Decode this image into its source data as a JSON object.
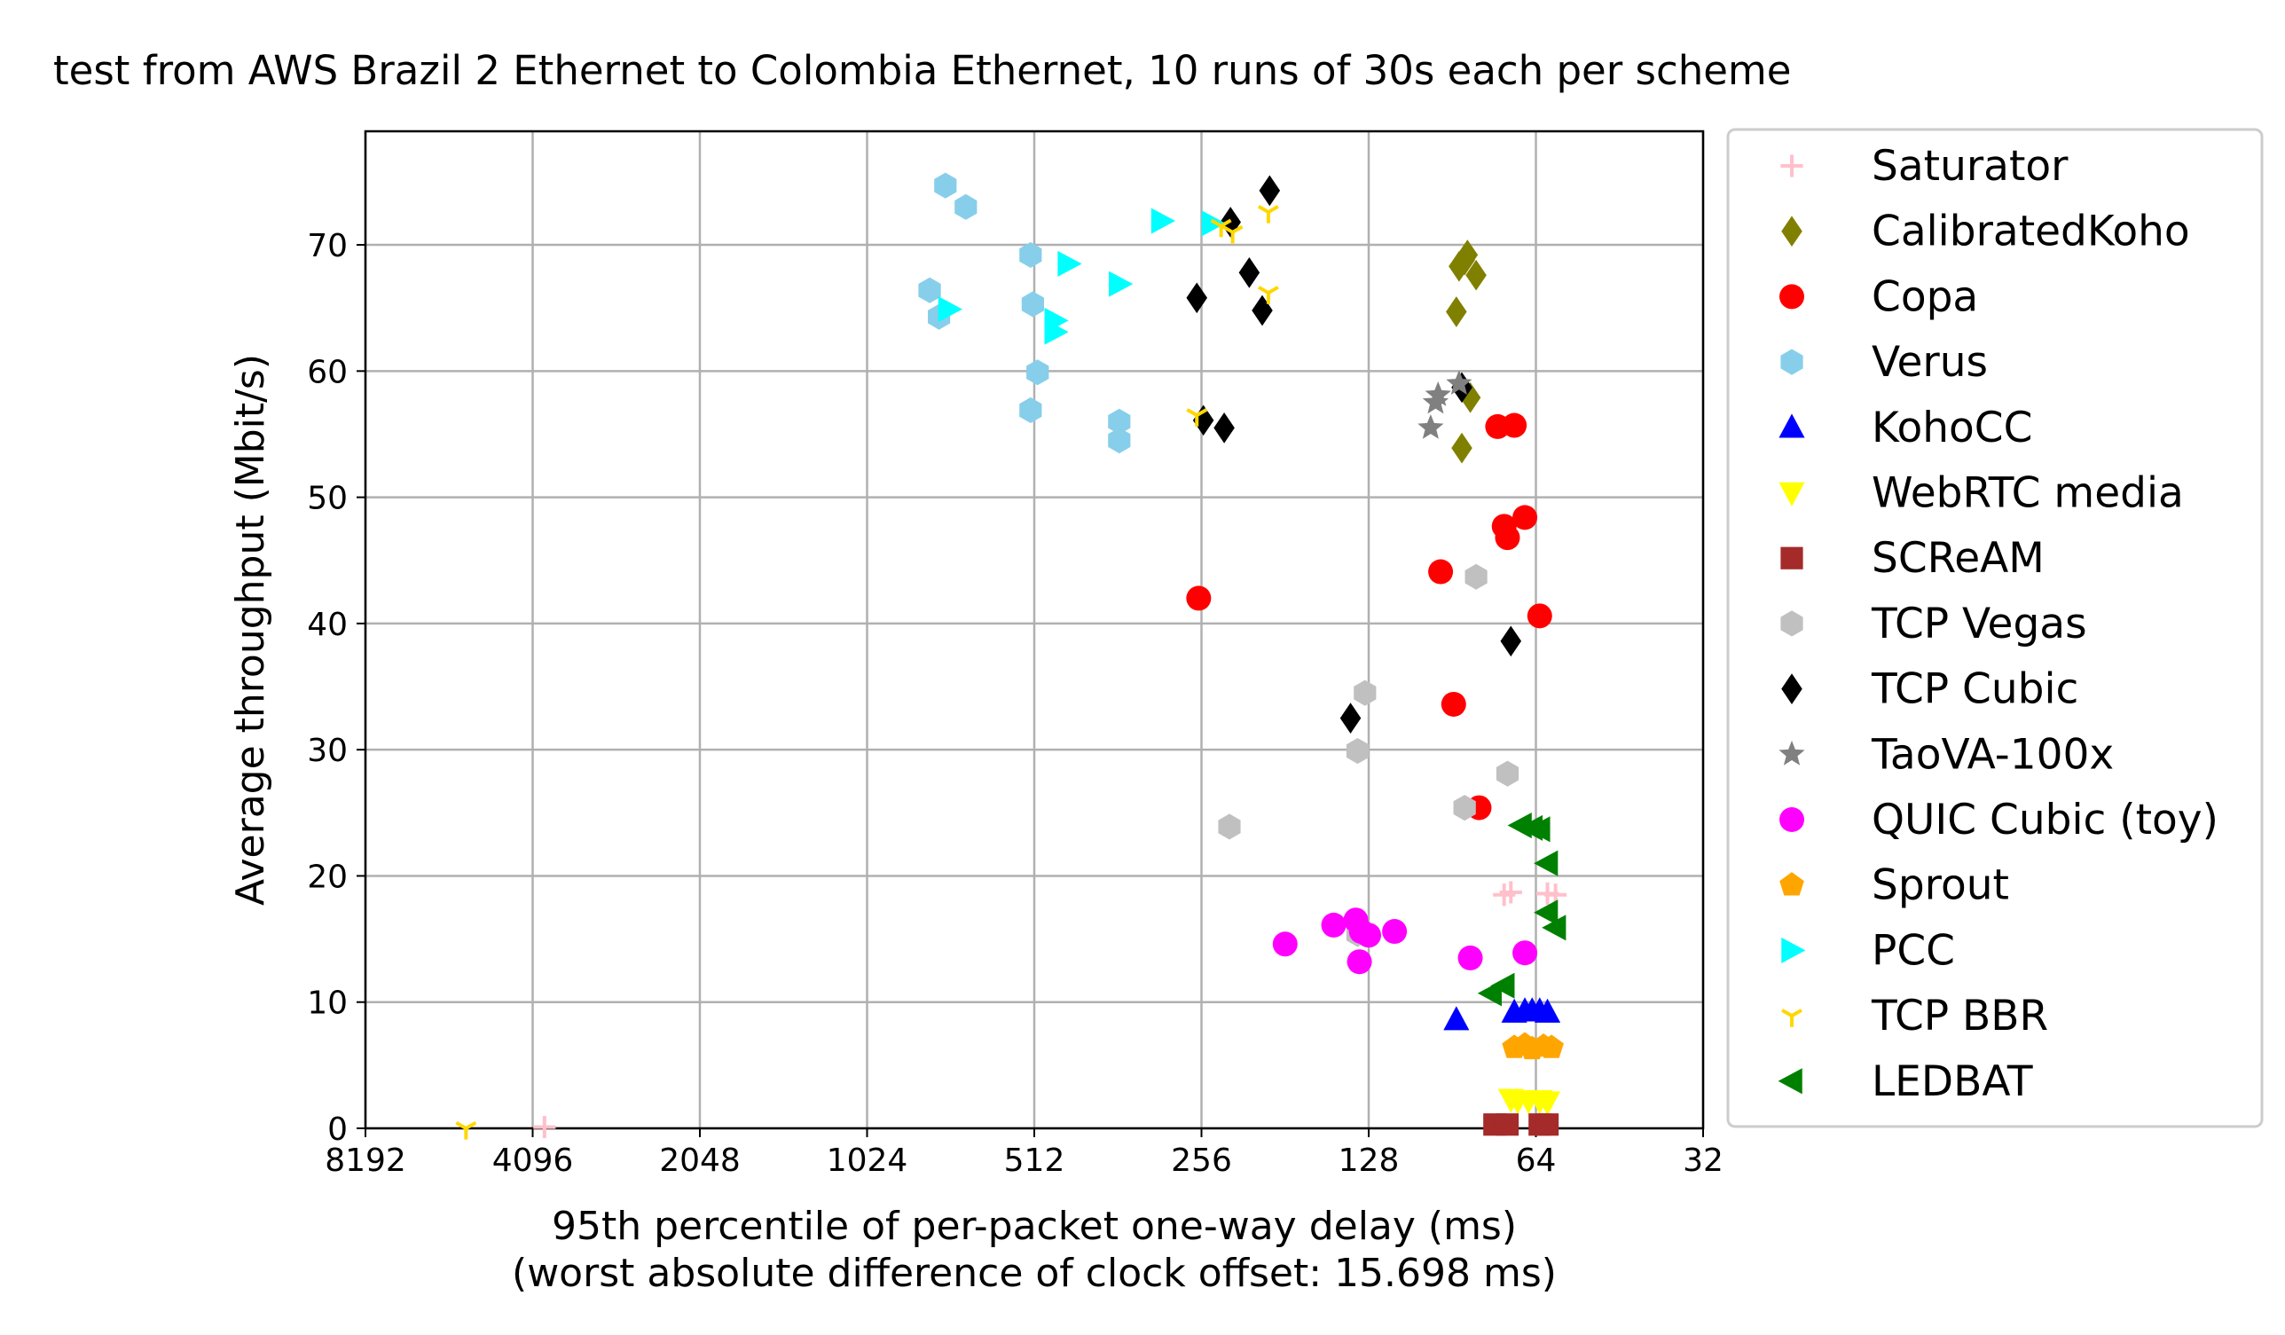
{
  "chart_data": {
    "type": "scatter",
    "title": "test from AWS Brazil 2 Ethernet to Colombia Ethernet, 10 runs of 30s each per scheme",
    "xlabel": "95th percentile of per-packet one-way delay (ms)",
    "xlabel2": "(worst absolute difference of clock offset: 15.698 ms)",
    "ylabel": "Average throughput (Mbit/s)",
    "x_scale": "log2-reversed",
    "xlim": [
      8192,
      32
    ],
    "ylim": [
      0,
      79
    ],
    "xticks": [
      8192,
      4096,
      2048,
      1024,
      512,
      256,
      128,
      64,
      32
    ],
    "xtick_labels": [
      "8192",
      "4096",
      "2048",
      "1024",
      "512",
      "256",
      "128",
      "64",
      "32"
    ],
    "yticks": [
      0,
      10,
      20,
      30,
      40,
      50,
      60,
      70
    ],
    "ytick_labels": [
      "0",
      "10",
      "20",
      "30",
      "40",
      "50",
      "60",
      "70"
    ],
    "grid": true,
    "legend_position": "outside-right",
    "series": [
      {
        "name": "Saturator",
        "color": "#ffc0cb",
        "marker": "plus",
        "points": [
          [
            3900,
            0.1
          ],
          [
            73,
            18.5
          ],
          [
            71,
            18.7
          ],
          [
            61,
            18.6
          ],
          [
            59,
            18.5
          ]
        ]
      },
      {
        "name": "CalibratedKoho",
        "color": "#808000",
        "marker": "diamond",
        "points": [
          [
            85,
            69.2
          ],
          [
            88,
            68.3
          ],
          [
            82,
            67.6
          ],
          [
            86,
            68.8
          ],
          [
            89,
            64.7
          ],
          [
            84,
            57.9
          ],
          [
            87,
            53.9
          ]
        ]
      },
      {
        "name": "Copa",
        "color": "#ff0000",
        "marker": "circle",
        "points": [
          [
            75,
            55.6
          ],
          [
            70,
            55.7
          ],
          [
            73,
            47.7
          ],
          [
            72,
            46.8
          ],
          [
            67,
            48.4
          ],
          [
            63,
            40.6
          ],
          [
            95,
            44.1
          ],
          [
            90,
            33.6
          ],
          [
            81,
            25.4
          ],
          [
            259,
            42.0
          ]
        ]
      },
      {
        "name": "Verus",
        "color": "#87ceeb",
        "marker": "hexagon",
        "points": [
          [
            740,
            74.7
          ],
          [
            680,
            73.0
          ],
          [
            520,
            69.2
          ],
          [
            515,
            65.3
          ],
          [
            790,
            66.4
          ],
          [
            760,
            64.3
          ],
          [
            505,
            59.9
          ],
          [
            520,
            56.9
          ],
          [
            360,
            56.0
          ],
          [
            360,
            54.5
          ]
        ]
      },
      {
        "name": "KohoCC",
        "color": "#0000ff",
        "marker": "triangle-up",
        "points": [
          [
            89,
            8.6
          ],
          [
            70,
            9.2
          ],
          [
            67,
            9.3
          ],
          [
            65,
            9.3
          ],
          [
            63,
            9.3
          ],
          [
            61,
            9.2
          ]
        ]
      },
      {
        "name": "WebRTC media",
        "color": "#ffff00",
        "marker": "triangle-down",
        "points": [
          [
            71,
            2.3
          ],
          [
            69,
            2.2
          ],
          [
            66,
            2.2
          ],
          [
            63,
            2.2
          ],
          [
            61,
            2.1
          ]
        ]
      },
      {
        "name": "SCReAM",
        "color": "#a52a2a",
        "marker": "square",
        "points": [
          [
            76,
            0.3
          ],
          [
            72,
            0.3
          ],
          [
            63,
            0.3
          ],
          [
            61,
            0.3
          ]
        ]
      },
      {
        "name": "TCP Vegas",
        "color": "#c0c0c0",
        "marker": "hexagon",
        "points": [
          [
            82,
            43.7
          ],
          [
            130,
            34.5
          ],
          [
            134,
            29.9
          ],
          [
            72,
            28.1
          ],
          [
            86,
            25.4
          ],
          [
            228,
            23.9
          ],
          [
            134,
            15.4
          ]
        ]
      },
      {
        "name": "TCP Cubic",
        "color": "#000000",
        "marker": "diamond",
        "points": [
          [
            193,
            74.3
          ],
          [
            227,
            71.8
          ],
          [
            210,
            67.8
          ],
          [
            199,
            64.8
          ],
          [
            261,
            65.8
          ],
          [
            254,
            56.1
          ],
          [
            233,
            55.5
          ],
          [
            87,
            58.7
          ],
          [
            71,
            38.6
          ],
          [
            138,
            32.5
          ]
        ]
      },
      {
        "name": "TaoVA-100x",
        "color": "#808080",
        "marker": "star",
        "points": [
          [
            97,
            57.5
          ],
          [
            96,
            58.1
          ],
          [
            88,
            59.0
          ],
          [
            99,
            55.5
          ]
        ]
      },
      {
        "name": "QUIC Cubic (toy)",
        "color": "#ff00ff",
        "marker": "circle",
        "points": [
          [
            181,
            14.6
          ],
          [
            148,
            16.1
          ],
          [
            135,
            16.5
          ],
          [
            132,
            15.6
          ],
          [
            128,
            15.3
          ],
          [
            115,
            15.6
          ],
          [
            133,
            13.2
          ],
          [
            84,
            13.5
          ],
          [
            67,
            13.9
          ]
        ]
      },
      {
        "name": "Sprout",
        "color": "#ffa500",
        "marker": "pentagon",
        "points": [
          [
            70,
            6.4
          ],
          [
            67,
            6.6
          ],
          [
            65,
            6.3
          ],
          [
            62,
            6.5
          ],
          [
            60,
            6.4
          ]
        ]
      },
      {
        "name": "PCC",
        "color": "#00ffff",
        "marker": "triangle-right",
        "points": [
          [
            730,
            64.9
          ],
          [
            445,
            68.5
          ],
          [
            470,
            64.0
          ],
          [
            470,
            63.1
          ],
          [
            360,
            66.9
          ],
          [
            302,
            71.9
          ],
          [
            245,
            71.7
          ]
        ]
      },
      {
        "name": "TCP BBR",
        "color": "#ffd700",
        "marker": "tri-down",
        "points": [
          [
            5400,
            0.0
          ],
          [
            236,
            71.5
          ],
          [
            225,
            71.0
          ],
          [
            194,
            72.6
          ],
          [
            194,
            66.2
          ],
          [
            261,
            56.5
          ]
        ]
      },
      {
        "name": "LEDBAT",
        "color": "#008000",
        "marker": "triangle-left",
        "points": [
          [
            68,
            24.0
          ],
          [
            65,
            23.8
          ],
          [
            63,
            23.7
          ],
          [
            61,
            21.0
          ],
          [
            61,
            17.1
          ],
          [
            59,
            15.9
          ],
          [
            73,
            11.3
          ],
          [
            77,
            10.7
          ]
        ]
      }
    ]
  }
}
